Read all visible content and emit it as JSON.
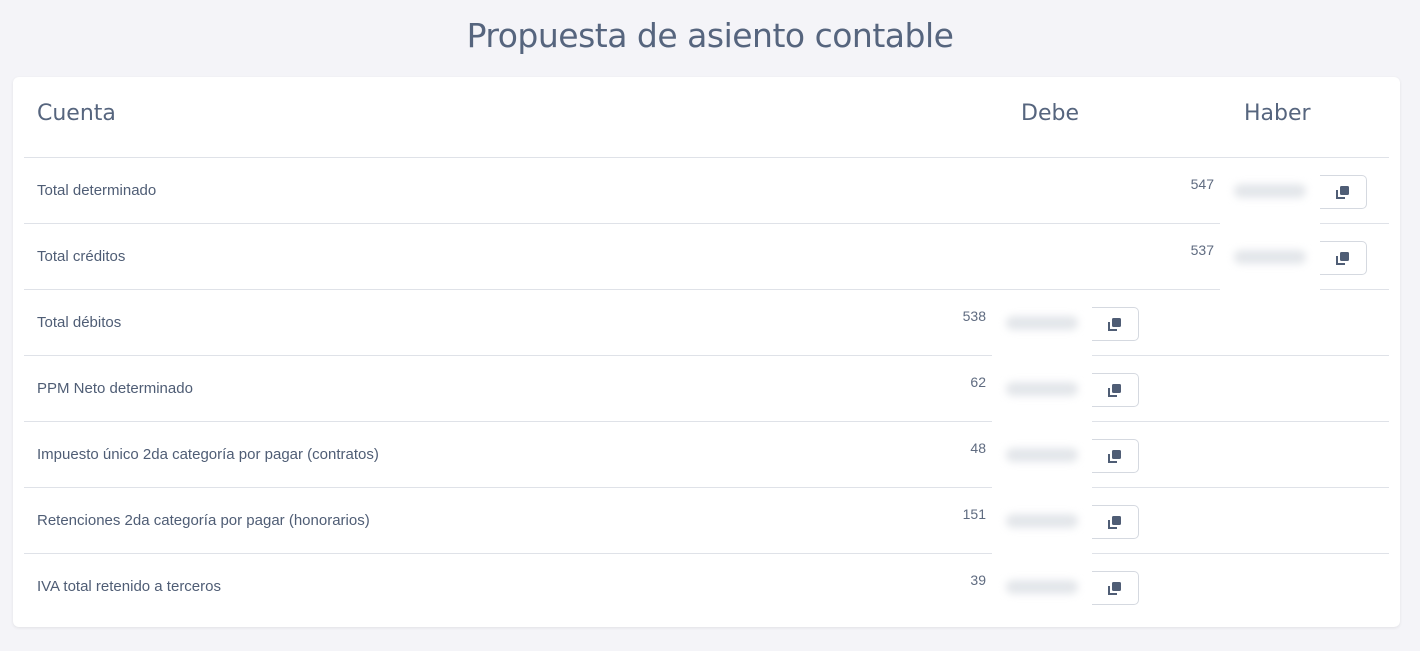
{
  "title": "Propuesta de asiento contable",
  "table": {
    "headers": {
      "account": "Cuenta",
      "debit": "Debe",
      "credit": "Haber"
    },
    "rows": [
      {
        "account": "Total determinado",
        "side": "credit",
        "code": "547"
      },
      {
        "account": "Total créditos",
        "side": "credit",
        "code": "537"
      },
      {
        "account": "Total débitos",
        "side": "debit",
        "code": "538"
      },
      {
        "account": "PPM Neto determinado",
        "side": "debit",
        "code": "62"
      },
      {
        "account": "Impuesto único 2da categoría por pagar (contratos)",
        "side": "debit",
        "code": "48"
      },
      {
        "account": "Retenciones 2da categoría por pagar (honorarios)",
        "side": "debit",
        "code": "151"
      },
      {
        "account": "IVA total retenido a terceros",
        "side": "debit",
        "code": "39"
      }
    ]
  },
  "icons": {
    "copy": "copy-icon"
  }
}
